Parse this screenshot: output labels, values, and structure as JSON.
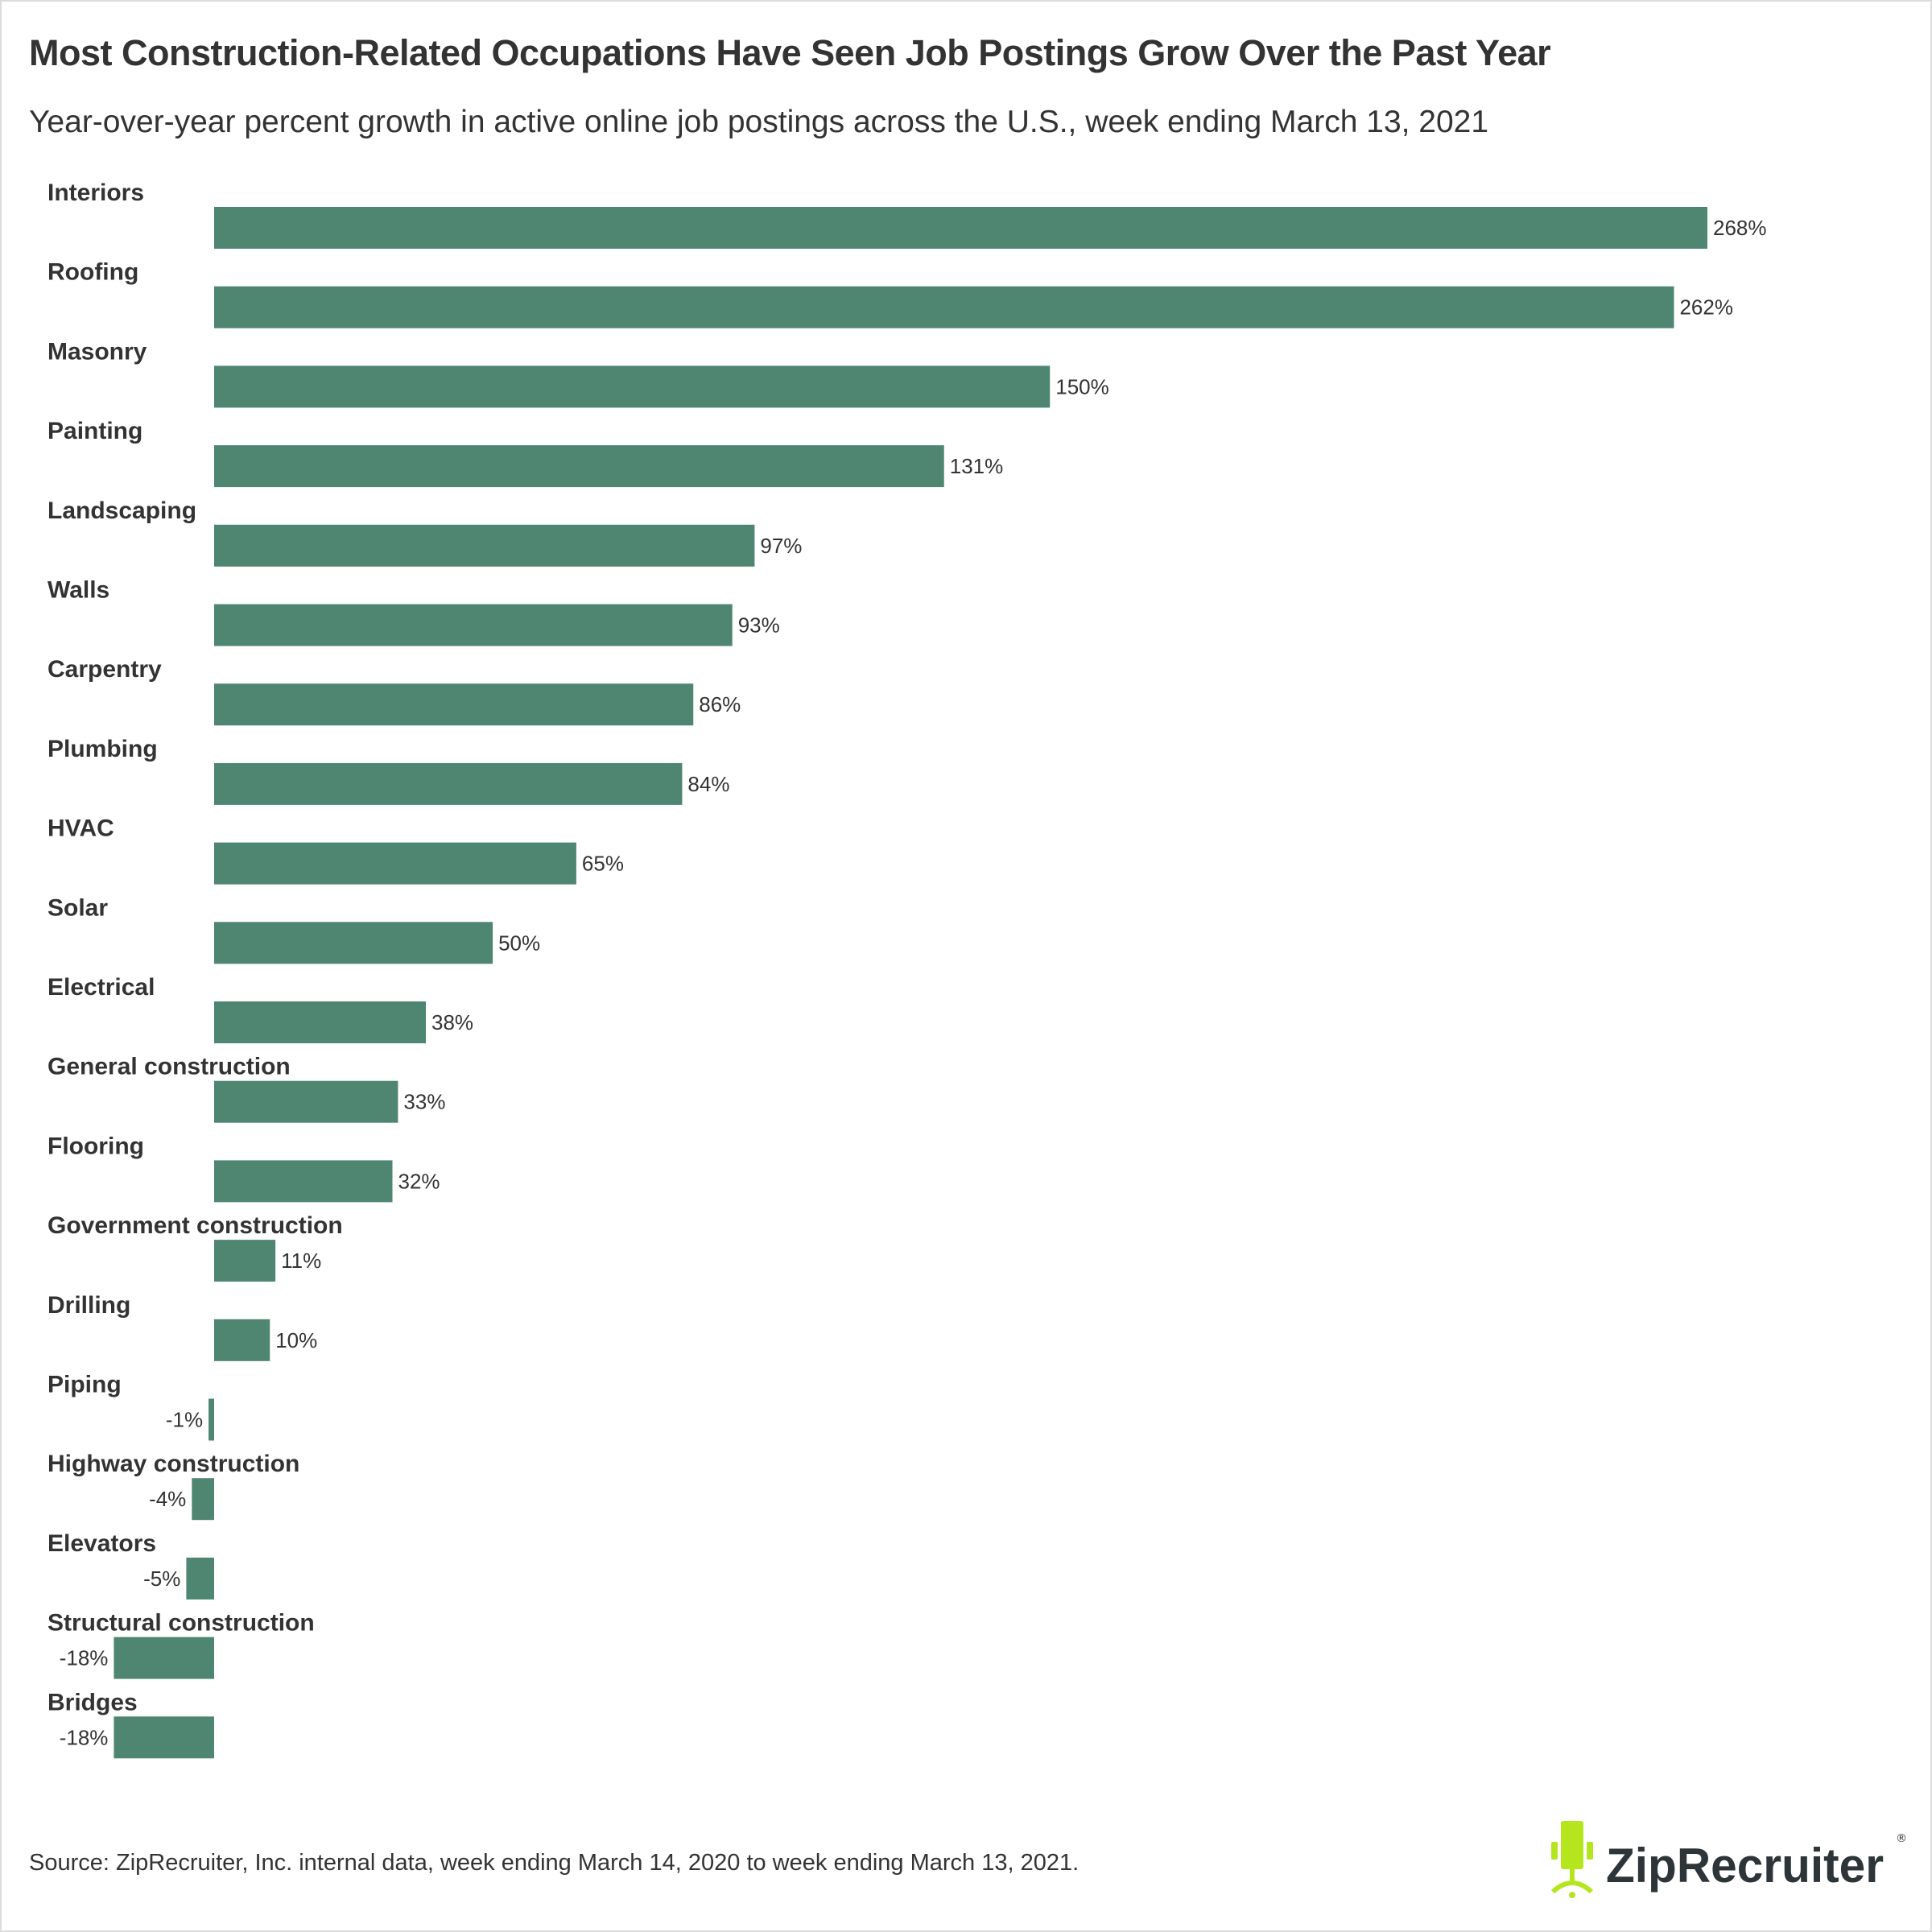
{
  "title": "Most Construction-Related Occupations Have Seen Job Postings Grow Over the Past Year",
  "subtitle": "Year-over-year percent growth in active online job postings across the U.S., week ending March 13, 2021",
  "source": "Source: ZipRecruiter, Inc. internal data, week ending March 14, 2020 to week ending March 13, 2021.",
  "logo": {
    "text": "ZipRecruiter",
    "icon": "office-chair-icon",
    "color": "#b5e61d",
    "text_color": "#2e3538"
  },
  "colors": {
    "bar": "#4e8672",
    "text": "#333333"
  },
  "chart_data": {
    "type": "bar",
    "orientation": "horizontal",
    "title": "Most Construction-Related Occupations Have Seen Job Postings Grow Over the Past Year",
    "subtitle": "Year-over-year percent growth in active online job postings across the U.S., week ending March 13, 2021",
    "categories": [
      "Interiors",
      "Roofing",
      "Masonry",
      "Painting",
      "Landscaping",
      "Walls",
      "Carpentry",
      "Plumbing",
      "HVAC",
      "Solar",
      "Electrical",
      "General construction",
      "Flooring",
      "Government construction",
      "Drilling",
      "Piping",
      "Highway construction",
      "Elevators",
      "Structural construction",
      "Bridges"
    ],
    "values": [
      268,
      262,
      150,
      131,
      97,
      93,
      86,
      84,
      65,
      50,
      38,
      33,
      32,
      11,
      10,
      -1,
      -4,
      -5,
      -18,
      -18
    ],
    "labels": [
      "268%",
      "262%",
      "150%",
      "131%",
      "97%",
      "93%",
      "86%",
      "84%",
      "65%",
      "50%",
      "38%",
      "33%",
      "32%",
      "11%",
      "10%",
      "-1%",
      "-4%",
      "-5%",
      "-18%",
      "-18%"
    ],
    "unit": "%",
    "grid": false,
    "legend": "none"
  }
}
